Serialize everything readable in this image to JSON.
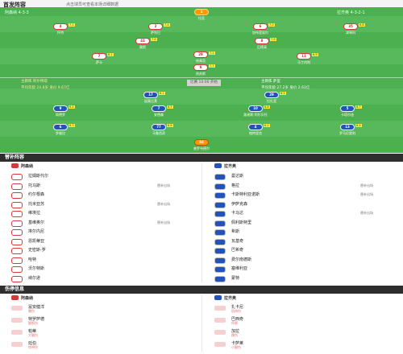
{
  "header": {
    "title": "首发阵容",
    "subtitle": "点击球员可查看本场详细数据"
  },
  "pitch": {
    "home_team_label": "阿森纳 4-3-3",
    "away_team_label": "拉齐奥 4-3-2-1",
    "home_coach": "主教练 阿尔特塔",
    "away_coach": "主教练 萨里",
    "home_formation_note": "平均年龄 24.8岁 身价 9.67亿",
    "away_formation_note": "平均年龄 27.2岁 身价 2.61亿",
    "center_label": "比赛 10:00 开始",
    "home_players": [
      {
        "num": "1",
        "name": "拉亚",
        "rating": "",
        "event": "",
        "kit": "gk-home"
      },
      {
        "num": "4",
        "name": "怀特",
        "rating": "7.1",
        "event": "",
        "kit": "home"
      },
      {
        "num": "2",
        "name": "萨利巴",
        "rating": "7.4",
        "event": "",
        "kit": "home"
      },
      {
        "num": "6",
        "name": "加布里埃尔",
        "rating": "7.0",
        "event": "",
        "kit": "home"
      },
      {
        "num": "35",
        "name": "津琴科",
        "rating": "6.8",
        "event": "",
        "kit": "home"
      },
      {
        "num": "41",
        "name": "赖斯",
        "rating": "7.6",
        "event": "",
        "kit": "home"
      },
      {
        "num": "8",
        "name": "厄德高",
        "rating": "7.9",
        "event": "",
        "kit": "home"
      },
      {
        "num": "29",
        "name": "哈弗茨",
        "rating": "7.2",
        "event": "",
        "kit": "home"
      },
      {
        "num": "7",
        "name": "萨卡",
        "rating": "8.1",
        "event": "",
        "kit": "home"
      },
      {
        "num": "9",
        "name": "热苏斯",
        "rating": "7.7",
        "event": "",
        "kit": "home"
      },
      {
        "num": "11",
        "name": "马丁内利",
        "rating": "6.9",
        "event": "",
        "kit": "home"
      }
    ],
    "away_players": [
      {
        "num": "94",
        "name": "普罗韦德尔",
        "rating": "",
        "event": "",
        "kit": "gk-away"
      },
      {
        "num": "29",
        "name": "拉扎里",
        "rating": "6.5",
        "event": "",
        "kit": "away"
      },
      {
        "num": "13",
        "name": "罗马尼奥利",
        "rating": "6.4",
        "event": "",
        "kit": "away"
      },
      {
        "num": "4",
        "name": "帕特里克",
        "rating": "6.2",
        "event": "",
        "kit": "away"
      },
      {
        "num": "77",
        "name": "马鲁西奇",
        "rating": "6.6",
        "event": "",
        "kit": "away"
      },
      {
        "num": "6",
        "name": "罗维拉",
        "rating": "6.3",
        "event": "",
        "kit": "away"
      },
      {
        "num": "5",
        "name": "卡塔尔迪",
        "rating": "6.7",
        "event": "",
        "kit": "away"
      },
      {
        "num": "10",
        "name": "路易斯-阿尔贝托",
        "rating": "6.8",
        "event": "",
        "kit": "away"
      },
      {
        "num": "7",
        "name": "安德森",
        "rating": "6.5",
        "event": "",
        "kit": "away"
      },
      {
        "num": "9",
        "name": "佩德罗",
        "rating": "6.4",
        "event": "",
        "kit": "away"
      },
      {
        "num": "17",
        "name": "因莫比莱",
        "rating": "6.1",
        "event": "",
        "kit": "away"
      }
    ]
  },
  "subs": {
    "title": "替补阵容",
    "home_head": "阿森纳",
    "away_head": "拉齐奥",
    "home": [
      {
        "name": "拉姆斯代尔",
        "pos": "门将",
        "tag": ""
      },
      {
        "name": "托马斯",
        "pos": "中场",
        "tag": "替补出场"
      },
      {
        "name": "约尔根森",
        "pos": "中场",
        "tag": ""
      },
      {
        "name": "托米亚苏",
        "pos": "后卫",
        "tag": "替补出场"
      },
      {
        "name": "维埃拉",
        "pos": "中场",
        "tag": ""
      },
      {
        "name": "基维奥尔",
        "pos": "后卫",
        "tag": "替补出场"
      },
      {
        "name": "埃尔内尼",
        "pos": "中场",
        "tag": ""
      },
      {
        "name": "恩凯蒂亚",
        "pos": "前锋",
        "tag": ""
      },
      {
        "name": "史密斯-罗",
        "pos": "中场",
        "tag": ""
      },
      {
        "name": "哈特",
        "pos": "门将",
        "tag": ""
      },
      {
        "name": "沃尔特斯",
        "pos": "后卫",
        "tag": ""
      },
      {
        "name": "纳尔逊",
        "pos": "前锋",
        "tag": ""
      }
    ],
    "away": [
      {
        "name": "曼达斯",
        "pos": "门将",
        "tag": ""
      },
      {
        "name": "格拉",
        "pos": "中场",
        "tag": "替补出场"
      },
      {
        "name": "卡斯特利亚诺斯",
        "pos": "前锋",
        "tag": "替补出场"
      },
      {
        "name": "伊萨克森",
        "pos": "前锋",
        "tag": ""
      },
      {
        "name": "卡马达",
        "pos": "中场",
        "tag": "替补出场"
      },
      {
        "name": "佩利斯特里",
        "pos": "后卫",
        "tag": ""
      },
      {
        "name": "希斯",
        "pos": "后卫",
        "tag": ""
      },
      {
        "name": "瓦基奇",
        "pos": "中场",
        "tag": ""
      },
      {
        "name": "巴希奇",
        "pos": "中场",
        "tag": ""
      },
      {
        "name": "费尔南德斯",
        "pos": "前锋",
        "tag": ""
      },
      {
        "name": "塞维利亚",
        "pos": "门将",
        "tag": ""
      },
      {
        "name": "蒙特",
        "pos": "后卫",
        "tag": ""
      }
    ]
  },
  "injury": {
    "title": "伤停信息",
    "home_head": "阿森纳",
    "away_head": "拉齐奥",
    "home": [
      {
        "name": "冨安健洋",
        "reason": "膝伤"
      },
      {
        "name": "特罗萨德",
        "reason": "腿筋伤"
      },
      {
        "name": "帕蒂",
        "reason": "大腿伤"
      },
      {
        "name": "廷伯",
        "reason": "韧带伤"
      }
    ],
    "away": [
      {
        "name": "扎卡尼",
        "reason": "肌肉伤"
      },
      {
        "name": "巴西奇",
        "reason": "停赛"
      },
      {
        "name": "加拉",
        "reason": "踝伤"
      },
      {
        "name": "卡萨莱",
        "reason": "小腿伤"
      }
    ]
  }
}
